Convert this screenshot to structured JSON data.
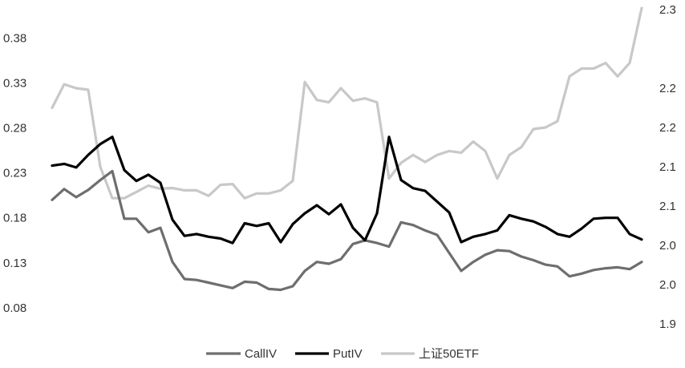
{
  "chart_data": {
    "type": "line",
    "title": "",
    "xlabel": "",
    "grid": false,
    "legend_position": "bottom",
    "left_axis": {
      "min": 0.055,
      "max": 0.415,
      "ticks": [
        "0.08",
        "0.13",
        "0.18",
        "0.23",
        "0.28",
        "0.33",
        "0.38"
      ],
      "tick_values": [
        0.08,
        0.13,
        0.18,
        0.23,
        0.28,
        0.33,
        0.38
      ]
    },
    "right_axis": {
      "min": 1.9,
      "max": 2.3,
      "ticks": [
        "1.9",
        "2.0",
        "2.0",
        "2.1",
        "2.1",
        "2.2",
        "2.2",
        "2.3"
      ],
      "tick_values": [
        1.9,
        1.95,
        2.0,
        2.05,
        2.1,
        2.15,
        2.2,
        2.3
      ]
    },
    "series": [
      {
        "name": "CallIV",
        "color": "#6e6e6e",
        "axis": "left",
        "values": [
          0.2,
          0.212,
          0.203,
          0.211,
          0.222,
          0.232,
          0.179,
          0.179,
          0.164,
          0.169,
          0.131,
          0.112,
          0.111,
          0.108,
          0.105,
          0.102,
          0.109,
          0.108,
          0.101,
          0.1,
          0.104,
          0.121,
          0.131,
          0.129,
          0.134,
          0.151,
          0.155,
          0.152,
          0.148,
          0.175,
          0.172,
          0.166,
          0.161,
          0.141,
          0.121,
          0.131,
          0.139,
          0.144,
          0.143,
          0.137,
          0.133,
          0.128,
          0.126,
          0.115,
          0.118,
          0.122,
          0.124,
          0.125,
          0.123,
          0.131
        ]
      },
      {
        "name": "PutIV",
        "color": "#000000",
        "axis": "left",
        "values": [
          0.238,
          0.24,
          0.236,
          0.25,
          0.262,
          0.27,
          0.233,
          0.221,
          0.228,
          0.219,
          0.178,
          0.16,
          0.162,
          0.159,
          0.157,
          0.152,
          0.174,
          0.171,
          0.174,
          0.153,
          0.173,
          0.185,
          0.194,
          0.184,
          0.195,
          0.169,
          0.155,
          0.185,
          0.27,
          0.222,
          0.213,
          0.21,
          0.198,
          0.186,
          0.153,
          0.159,
          0.162,
          0.166,
          0.183,
          0.179,
          0.176,
          0.17,
          0.162,
          0.159,
          0.168,
          0.179,
          0.18,
          0.18,
          0.162,
          0.156
        ]
      },
      {
        "name": "上证50ETF",
        "color": "#c8c8c8",
        "axis": "right",
        "values": [
          2.175,
          2.205,
          2.2,
          2.198,
          2.1,
          2.06,
          2.06,
          2.068,
          2.076,
          2.072,
          2.073,
          2.07,
          2.07,
          2.063,
          2.077,
          2.078,
          2.06,
          2.066,
          2.066,
          2.07,
          2.082,
          2.208,
          2.185,
          2.182,
          2.2,
          2.184,
          2.187,
          2.182,
          2.085,
          2.105,
          2.115,
          2.106,
          2.115,
          2.12,
          2.118,
          2.132,
          2.12,
          2.085,
          2.115,
          2.125,
          2.148,
          2.15,
          2.158,
          2.215,
          2.225,
          2.225,
          2.232,
          2.215,
          2.232,
          2.302
        ]
      }
    ]
  }
}
